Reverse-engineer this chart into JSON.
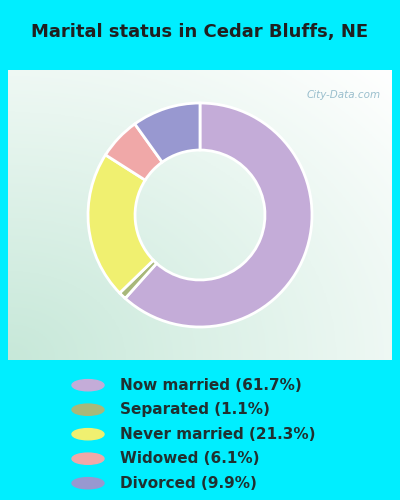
{
  "title": "Marital status in Cedar Bluffs, NE",
  "slices": [
    61.7,
    1.1,
    21.3,
    6.1,
    9.9
  ],
  "labels": [
    "Now married (61.7%)",
    "Separated (1.1%)",
    "Never married (21.3%)",
    "Widowed (6.1%)",
    "Divorced (9.9%)"
  ],
  "colors": [
    "#c4acd8",
    "#a8b87a",
    "#f0f070",
    "#f0a8a8",
    "#9898d0"
  ],
  "bg_color": "#00eeff",
  "chart_bg_left": "#c8e8d8",
  "chart_bg_right": "#f0f8f4",
  "watermark": "City-Data.com",
  "title_fontsize": 13,
  "legend_fontsize": 11,
  "donut_width": 0.42,
  "title_color": "#202020",
  "legend_text_color": "#203030"
}
